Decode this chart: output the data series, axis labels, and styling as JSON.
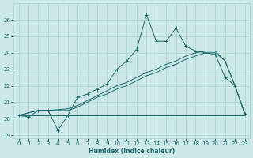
{
  "xlabel": "Humidex (Indice chaleur)",
  "bg_color": "#cce8e8",
  "grid_color": "#b0d0d0",
  "line_color": "#1a6b6b",
  "xlim": [
    -0.5,
    23.5
  ],
  "ylim": [
    18.8,
    27.0
  ],
  "yticks": [
    19,
    20,
    21,
    22,
    23,
    24,
    25,
    26
  ],
  "xticks": [
    0,
    1,
    2,
    3,
    4,
    5,
    6,
    7,
    8,
    9,
    10,
    11,
    12,
    13,
    14,
    15,
    16,
    17,
    18,
    19,
    20,
    21,
    22,
    23
  ],
  "curve1_x": [
    0,
    1,
    2,
    3,
    4,
    5,
    6,
    7,
    8,
    9,
    10,
    11,
    12,
    13,
    14,
    15,
    16,
    17,
    18,
    19,
    20,
    21,
    22,
    23
  ],
  "curve1_y": [
    20.2,
    20.1,
    20.5,
    20.5,
    19.3,
    20.2,
    21.3,
    21.5,
    21.8,
    22.1,
    23.0,
    23.5,
    24.2,
    26.3,
    24.7,
    24.7,
    25.5,
    24.4,
    24.1,
    24.0,
    23.9,
    22.5,
    22.0,
    20.3
  ],
  "curve2_x": [
    0,
    2,
    3,
    5,
    6,
    7,
    8,
    9,
    10,
    11,
    12,
    13,
    14,
    15,
    16,
    17,
    18,
    19,
    20,
    21,
    22,
    23
  ],
  "curve2_y": [
    20.2,
    20.5,
    20.5,
    20.6,
    20.8,
    21.1,
    21.4,
    21.7,
    22.0,
    22.2,
    22.5,
    22.8,
    23.0,
    23.3,
    23.5,
    23.8,
    24.0,
    24.1,
    24.1,
    23.5,
    22.0,
    20.3
  ],
  "curve3_x": [
    0,
    2,
    3,
    5,
    6,
    7,
    8,
    9,
    10,
    11,
    12,
    13,
    14,
    15,
    16,
    17,
    18,
    19,
    20,
    21,
    22,
    23
  ],
  "curve3_y": [
    20.2,
    20.5,
    20.5,
    20.5,
    20.7,
    21.0,
    21.3,
    21.5,
    21.8,
    22.0,
    22.3,
    22.6,
    22.8,
    23.1,
    23.3,
    23.6,
    23.8,
    24.0,
    24.0,
    23.5,
    22.0,
    20.3
  ],
  "flat_x": [
    0,
    3,
    4,
    5,
    6,
    7,
    8,
    9,
    10,
    11,
    12,
    13,
    14,
    15,
    16,
    17,
    18,
    19,
    20,
    22,
    23
  ],
  "flat_y": [
    20.2,
    20.2,
    20.2,
    20.2,
    20.2,
    20.2,
    20.2,
    20.2,
    20.2,
    20.2,
    20.2,
    20.2,
    20.2,
    20.2,
    20.2,
    20.2,
    20.2,
    20.2,
    20.2,
    20.2,
    20.2
  ]
}
